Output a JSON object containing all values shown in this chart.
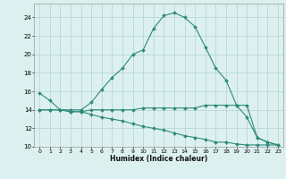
{
  "xlabel": "Humidex (Indice chaleur)",
  "x": [
    0,
    1,
    2,
    3,
    4,
    5,
    6,
    7,
    8,
    9,
    10,
    11,
    12,
    13,
    14,
    15,
    16,
    17,
    18,
    19,
    20,
    21,
    22,
    23
  ],
  "line1": [
    15.8,
    15.0,
    14.0,
    14.0,
    14.0,
    14.8,
    16.2,
    17.5,
    18.5,
    20.0,
    20.5,
    22.8,
    24.2,
    24.5,
    24.0,
    23.0,
    20.8,
    18.5,
    17.2,
    14.5,
    14.5,
    11.0,
    10.5,
    10.2
  ],
  "line2": [
    14.0,
    14.0,
    14.0,
    13.8,
    13.8,
    14.0,
    14.0,
    14.0,
    14.0,
    14.0,
    14.2,
    14.2,
    14.2,
    14.2,
    14.2,
    14.2,
    14.5,
    14.5,
    14.5,
    14.5,
    13.2,
    11.0,
    10.5,
    10.2
  ],
  "line3": [
    14.0,
    14.0,
    14.0,
    13.8,
    13.8,
    13.5,
    13.2,
    13.0,
    12.8,
    12.5,
    12.2,
    12.0,
    11.8,
    11.5,
    11.2,
    11.0,
    10.8,
    10.5,
    10.5,
    10.3,
    10.2,
    10.2,
    10.2,
    10.2
  ],
  "line_color": "#2e8b7a",
  "bg_color": "#ddf0f0",
  "grid_color": "#b8d8d8",
  "ylim": [
    10,
    25.5
  ],
  "yticks": [
    10,
    12,
    14,
    16,
    18,
    20,
    22,
    24
  ],
  "xticks": [
    0,
    1,
    2,
    3,
    4,
    5,
    6,
    7,
    8,
    9,
    10,
    11,
    12,
    13,
    14,
    15,
    16,
    17,
    18,
    19,
    20,
    21,
    22,
    23
  ]
}
